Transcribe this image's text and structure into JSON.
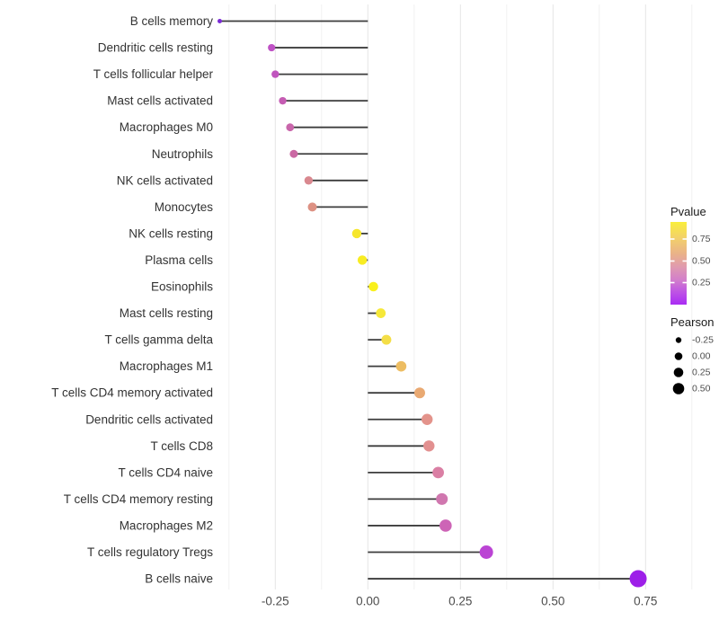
{
  "chart_data": {
    "type": "lollipop",
    "title": "",
    "xlabel": "",
    "ylabel": "",
    "grid": true,
    "x_ticks": [
      -0.25,
      0,
      0.25,
      0.5,
      0.75
    ],
    "x_tick_labels": [
      "-0.25",
      "0.00",
      "0.25",
      "0.50",
      "0.75"
    ],
    "x_minor_ticks": [
      -0.375,
      -0.125,
      0.125,
      0.375,
      0.625,
      0.875
    ],
    "xlim": [
      -0.44,
      0.89
    ],
    "stem_color": "#3d3d3d",
    "points": [
      {
        "label": "B cells memory",
        "pearson": -0.4,
        "color": "#7b2bd6",
        "radius": 2.5
      },
      {
        "label": "Dendritic cells resting",
        "pearson": -0.26,
        "color": "#bf52c5",
        "radius": 4.1
      },
      {
        "label": "T cells follicular helper",
        "pearson": -0.25,
        "color": "#c055be",
        "radius": 4.2
      },
      {
        "label": "Mast cells activated",
        "pearson": -0.23,
        "color": "#c55cb3",
        "radius": 4.2
      },
      {
        "label": "Macrophages M0",
        "pearson": -0.21,
        "color": "#c966ab",
        "radius": 4.4
      },
      {
        "label": "Neutrophils",
        "pearson": -0.2,
        "color": "#ca68a3",
        "radius": 4.5
      },
      {
        "label": "NK cells activated",
        "pearson": -0.16,
        "color": "#d9888f",
        "radius": 4.7
      },
      {
        "label": "Monocytes",
        "pearson": -0.15,
        "color": "#dd9183",
        "radius": 5.0
      },
      {
        "label": "NK cells resting",
        "pearson": -0.03,
        "color": "#f6e62c",
        "radius": 5.2
      },
      {
        "label": "Plasma cells",
        "pearson": -0.015,
        "color": "#f8ec22",
        "radius": 5.2
      },
      {
        "label": "Eosinophils",
        "pearson": 0.015,
        "color": "#f9f01c",
        "radius": 5.3
      },
      {
        "label": "Mast cells resting",
        "pearson": 0.035,
        "color": "#f6e839",
        "radius": 5.4
      },
      {
        "label": "T cells gamma delta",
        "pearson": 0.05,
        "color": "#f4de47",
        "radius": 5.5
      },
      {
        "label": "Macrophages M1",
        "pearson": 0.09,
        "color": "#edbd62",
        "radius": 5.8
      },
      {
        "label": "T cells CD4 memory activated",
        "pearson": 0.14,
        "color": "#e9a972",
        "radius": 6.0
      },
      {
        "label": "Dendritic cells activated",
        "pearson": 0.16,
        "color": "#e3938b",
        "radius": 6.2
      },
      {
        "label": "T cells CD8",
        "pearson": 0.165,
        "color": "#e29090",
        "radius": 6.2
      },
      {
        "label": "T cells CD4 naive",
        "pearson": 0.19,
        "color": "#da7fa4",
        "radius": 6.4
      },
      {
        "label": "T cells CD4 memory resting",
        "pearson": 0.2,
        "color": "#d077af",
        "radius": 6.5
      },
      {
        "label": "Macrophages M2",
        "pearson": 0.21,
        "color": "#cd64b6",
        "radius": 6.8
      },
      {
        "label": "T cells regulatory  Tregs",
        "pearson": 0.32,
        "color": "#bb44d4",
        "radius": 7.5
      },
      {
        "label": "B cells naive",
        "pearson": 0.73,
        "color": "#9d1fe8",
        "radius": 9.5
      }
    ],
    "legend": {
      "pvalue": {
        "title": "Pvalue",
        "tick_labels": [
          "0.75",
          "0.50",
          "0.25"
        ],
        "gradient_colors": [
          "#f9ee3b",
          "#f3d368",
          "#eab388",
          "#e09bae",
          "#d27fcb",
          "#bc50e6",
          "#a92cf4"
        ],
        "gradient_offsets": [
          0,
          0.18,
          0.38,
          0.54,
          0.7,
          0.86,
          1
        ]
      },
      "pearson": {
        "title": "Pearson",
        "tick_labels": [
          "-0.25",
          "0.00",
          "0.25",
          "0.50"
        ],
        "dot_color": "#000000"
      }
    },
    "colors": {
      "major_grid": "#e4e4e4",
      "minor_grid": "#f1f1f1",
      "axis_text": "#4d4d4d",
      "category_text": "#333333",
      "legend_title_text": "#1a1a1a"
    }
  }
}
